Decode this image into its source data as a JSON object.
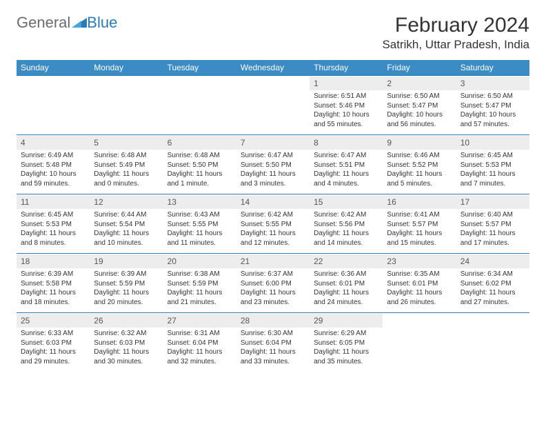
{
  "brand": {
    "part1": "General",
    "part2": "Blue"
  },
  "title": "February 2024",
  "location": "Satrikh, Uttar Pradesh, India",
  "colors": {
    "header_bg": "#3b8bc4",
    "header_text": "#ffffff",
    "rule": "#2a7ab8",
    "daynum_bg": "#ededed",
    "logo_gray": "#6b6b6b",
    "logo_blue": "#2a7ab8",
    "page_bg": "#ffffff"
  },
  "typography": {
    "month_title_pt": 30,
    "location_pt": 17,
    "dayhead_pt": 12,
    "daynum_pt": 12,
    "daydata_pt": 10,
    "font_family": "Arial"
  },
  "layout": {
    "columns": 7,
    "rows": 5,
    "first_weekday_index": 4
  },
  "day_headers": [
    "Sunday",
    "Monday",
    "Tuesday",
    "Wednesday",
    "Thursday",
    "Friday",
    "Saturday"
  ],
  "weeks": [
    [
      {
        "n": "",
        "sunrise": "",
        "sunset": "",
        "daylight": "",
        "empty": true
      },
      {
        "n": "",
        "sunrise": "",
        "sunset": "",
        "daylight": "",
        "empty": true
      },
      {
        "n": "",
        "sunrise": "",
        "sunset": "",
        "daylight": "",
        "empty": true
      },
      {
        "n": "",
        "sunrise": "",
        "sunset": "",
        "daylight": "",
        "empty": true
      },
      {
        "n": "1",
        "sunrise": "Sunrise: 6:51 AM",
        "sunset": "Sunset: 5:46 PM",
        "daylight": "Daylight: 10 hours and 55 minutes."
      },
      {
        "n": "2",
        "sunrise": "Sunrise: 6:50 AM",
        "sunset": "Sunset: 5:47 PM",
        "daylight": "Daylight: 10 hours and 56 minutes."
      },
      {
        "n": "3",
        "sunrise": "Sunrise: 6:50 AM",
        "sunset": "Sunset: 5:47 PM",
        "daylight": "Daylight: 10 hours and 57 minutes."
      }
    ],
    [
      {
        "n": "4",
        "sunrise": "Sunrise: 6:49 AM",
        "sunset": "Sunset: 5:48 PM",
        "daylight": "Daylight: 10 hours and 59 minutes."
      },
      {
        "n": "5",
        "sunrise": "Sunrise: 6:48 AM",
        "sunset": "Sunset: 5:49 PM",
        "daylight": "Daylight: 11 hours and 0 minutes."
      },
      {
        "n": "6",
        "sunrise": "Sunrise: 6:48 AM",
        "sunset": "Sunset: 5:50 PM",
        "daylight": "Daylight: 11 hours and 1 minute."
      },
      {
        "n": "7",
        "sunrise": "Sunrise: 6:47 AM",
        "sunset": "Sunset: 5:50 PM",
        "daylight": "Daylight: 11 hours and 3 minutes."
      },
      {
        "n": "8",
        "sunrise": "Sunrise: 6:47 AM",
        "sunset": "Sunset: 5:51 PM",
        "daylight": "Daylight: 11 hours and 4 minutes."
      },
      {
        "n": "9",
        "sunrise": "Sunrise: 6:46 AM",
        "sunset": "Sunset: 5:52 PM",
        "daylight": "Daylight: 11 hours and 5 minutes."
      },
      {
        "n": "10",
        "sunrise": "Sunrise: 6:45 AM",
        "sunset": "Sunset: 5:53 PM",
        "daylight": "Daylight: 11 hours and 7 minutes."
      }
    ],
    [
      {
        "n": "11",
        "sunrise": "Sunrise: 6:45 AM",
        "sunset": "Sunset: 5:53 PM",
        "daylight": "Daylight: 11 hours and 8 minutes."
      },
      {
        "n": "12",
        "sunrise": "Sunrise: 6:44 AM",
        "sunset": "Sunset: 5:54 PM",
        "daylight": "Daylight: 11 hours and 10 minutes."
      },
      {
        "n": "13",
        "sunrise": "Sunrise: 6:43 AM",
        "sunset": "Sunset: 5:55 PM",
        "daylight": "Daylight: 11 hours and 11 minutes."
      },
      {
        "n": "14",
        "sunrise": "Sunrise: 6:42 AM",
        "sunset": "Sunset: 5:55 PM",
        "daylight": "Daylight: 11 hours and 12 minutes."
      },
      {
        "n": "15",
        "sunrise": "Sunrise: 6:42 AM",
        "sunset": "Sunset: 5:56 PM",
        "daylight": "Daylight: 11 hours and 14 minutes."
      },
      {
        "n": "16",
        "sunrise": "Sunrise: 6:41 AM",
        "sunset": "Sunset: 5:57 PM",
        "daylight": "Daylight: 11 hours and 15 minutes."
      },
      {
        "n": "17",
        "sunrise": "Sunrise: 6:40 AM",
        "sunset": "Sunset: 5:57 PM",
        "daylight": "Daylight: 11 hours and 17 minutes."
      }
    ],
    [
      {
        "n": "18",
        "sunrise": "Sunrise: 6:39 AM",
        "sunset": "Sunset: 5:58 PM",
        "daylight": "Daylight: 11 hours and 18 minutes."
      },
      {
        "n": "19",
        "sunrise": "Sunrise: 6:39 AM",
        "sunset": "Sunset: 5:59 PM",
        "daylight": "Daylight: 11 hours and 20 minutes."
      },
      {
        "n": "20",
        "sunrise": "Sunrise: 6:38 AM",
        "sunset": "Sunset: 5:59 PM",
        "daylight": "Daylight: 11 hours and 21 minutes."
      },
      {
        "n": "21",
        "sunrise": "Sunrise: 6:37 AM",
        "sunset": "Sunset: 6:00 PM",
        "daylight": "Daylight: 11 hours and 23 minutes."
      },
      {
        "n": "22",
        "sunrise": "Sunrise: 6:36 AM",
        "sunset": "Sunset: 6:01 PM",
        "daylight": "Daylight: 11 hours and 24 minutes."
      },
      {
        "n": "23",
        "sunrise": "Sunrise: 6:35 AM",
        "sunset": "Sunset: 6:01 PM",
        "daylight": "Daylight: 11 hours and 26 minutes."
      },
      {
        "n": "24",
        "sunrise": "Sunrise: 6:34 AM",
        "sunset": "Sunset: 6:02 PM",
        "daylight": "Daylight: 11 hours and 27 minutes."
      }
    ],
    [
      {
        "n": "25",
        "sunrise": "Sunrise: 6:33 AM",
        "sunset": "Sunset: 6:03 PM",
        "daylight": "Daylight: 11 hours and 29 minutes."
      },
      {
        "n": "26",
        "sunrise": "Sunrise: 6:32 AM",
        "sunset": "Sunset: 6:03 PM",
        "daylight": "Daylight: 11 hours and 30 minutes."
      },
      {
        "n": "27",
        "sunrise": "Sunrise: 6:31 AM",
        "sunset": "Sunset: 6:04 PM",
        "daylight": "Daylight: 11 hours and 32 minutes."
      },
      {
        "n": "28",
        "sunrise": "Sunrise: 6:30 AM",
        "sunset": "Sunset: 6:04 PM",
        "daylight": "Daylight: 11 hours and 33 minutes."
      },
      {
        "n": "29",
        "sunrise": "Sunrise: 6:29 AM",
        "sunset": "Sunset: 6:05 PM",
        "daylight": "Daylight: 11 hours and 35 minutes."
      },
      {
        "n": "",
        "sunrise": "",
        "sunset": "",
        "daylight": "",
        "empty": true
      },
      {
        "n": "",
        "sunrise": "",
        "sunset": "",
        "daylight": "",
        "empty": true
      }
    ]
  ]
}
